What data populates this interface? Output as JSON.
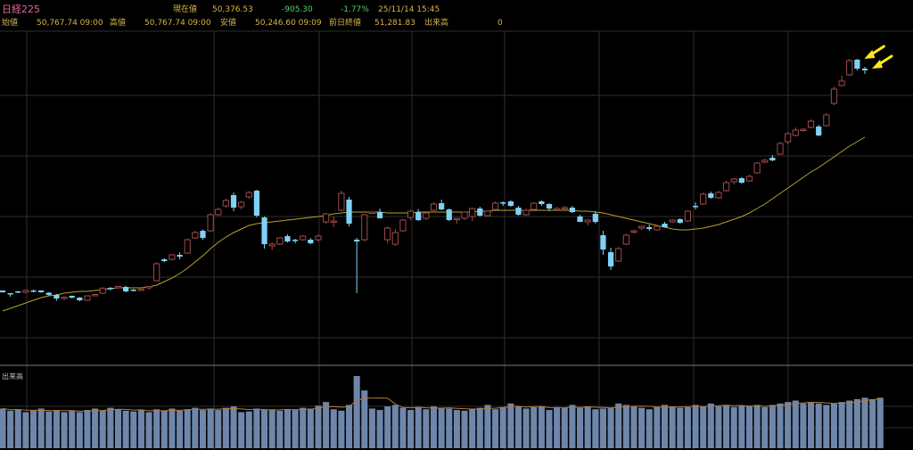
{
  "header": {
    "index_name": "日経225",
    "current_label": "現在値",
    "current_value": "50,376.53",
    "change": "-905.30",
    "change_pct": "-1.77%",
    "datetime": "25/11/14 15:45",
    "open_label": "始値",
    "open_value": "50,767.74 09:00",
    "high_label": "高値",
    "high_value": "50,767.74 09:00",
    "low_label": "安値",
    "low_value": "50,246.60 09:09",
    "prev_close_label": "前日終値",
    "prev_close_value": "51,281.83",
    "volume_label": "出来高",
    "volume_value": "0"
  },
  "volume_panel": {
    "label": "出来高"
  },
  "colors": {
    "up_candle": "#a14a4a",
    "down_candle": "#7fd2f7",
    "moving_average": "#b5a32a",
    "volume_bar": "#6e86aa",
    "grid": "#2e2e2e",
    "arrow": "#ffe81a"
  },
  "chart_data": [
    {
      "type": "candlestick",
      "series": [
        {
          "ohlc": [
            [
              0.53,
              0.53,
              0.505,
              0.51
            ],
            [
              0.5,
              0.495,
              0.46,
              0.485
            ],
            [
              0.52,
              0.525,
              0.5,
              0.515
            ],
            [
              0.51,
              0.54,
              0.5,
              0.53
            ],
            [
              0.53,
              0.54,
              0.51,
              0.52
            ],
            [
              0.53,
              0.532,
              0.505,
              0.51
            ],
            [
              0.505,
              0.512,
              0.47,
              0.48
            ],
            [
              0.48,
              0.492,
              0.415,
              0.44
            ],
            [
              0.45,
              0.463,
              0.425,
              0.455
            ],
            [
              0.47,
              0.475,
              0.44,
              0.45
            ],
            [
              0.45,
              0.456,
              0.41,
              0.42
            ],
            [
              0.42,
              0.475,
              0.412,
              0.47
            ],
            [
              0.48,
              0.492,
              0.47,
              0.485
            ],
            [
              0.5,
              0.566,
              0.49,
              0.556
            ],
            [
              0.56,
              0.568,
              0.53,
              0.55
            ],
            [
              0.56,
              0.58,
              0.55,
              0.575
            ],
            [
              0.57,
              0.582,
              0.51,
              0.52
            ],
            [
              0.54,
              0.548,
              0.52,
              0.53
            ],
            [
              0.54,
              0.55,
              0.53,
              0.545
            ],
            [
              0.57,
              0.58,
              0.54,
              0.575
            ],
            [
              0.64,
              0.85,
              0.632,
              0.83
            ],
            [
              0.88,
              0.892,
              0.845,
              0.86
            ],
            [
              0.88,
              0.94,
              0.865,
              0.93
            ],
            [
              0.93,
              0.956,
              0.88,
              0.91
            ],
            [
              0.95,
              1.11,
              0.94,
              1.1
            ],
            [
              1.12,
              1.2,
              1.11,
              1.18
            ],
            [
              1.2,
              1.215,
              1.1,
              1.12
            ],
            [
              1.2,
              1.4,
              1.19,
              1.38
            ],
            [
              1.38,
              1.46,
              1.37,
              1.44
            ],
            [
              1.48,
              1.56,
              1.46,
              1.54
            ],
            [
              1.6,
              1.63,
              1.42,
              1.46
            ],
            [
              1.47,
              1.535,
              1.44,
              1.52
            ],
            [
              1.58,
              1.645,
              1.56,
              1.63
            ],
            [
              1.65,
              1.66,
              1.35,
              1.37
            ],
            [
              1.35,
              1.365,
              1.0,
              1.05
            ],
            [
              1.03,
              1.07,
              0.985,
              1.05
            ],
            [
              1.05,
              1.13,
              1.04,
              1.12
            ],
            [
              1.14,
              1.16,
              1.07,
              1.08
            ],
            [
              1.1,
              1.11,
              1.06,
              1.09
            ],
            [
              1.1,
              1.15,
              1.09,
              1.14
            ],
            [
              1.1,
              1.12,
              1.05,
              1.06
            ],
            [
              1.1,
              1.16,
              1.08,
              1.14
            ],
            [
              1.3,
              1.4,
              1.28,
              1.39
            ],
            [
              1.3,
              1.36,
              1.24,
              1.31
            ],
            [
              1.43,
              1.65,
              1.42,
              1.62
            ],
            [
              1.55,
              1.58,
              1.25,
              1.28
            ],
            [
              1.1,
              1.12,
              0.5,
              1.08
            ],
            [
              1.1,
              1.39,
              1.08,
              1.38
            ],
            [
              1.4,
              1.42,
              1.39,
              1.41
            ],
            [
              1.41,
              1.45,
              1.34,
              1.34
            ],
            [
              1.1,
              1.25,
              1.06,
              1.23
            ],
            [
              1.05,
              1.22,
              1.03,
              1.18
            ],
            [
              1.2,
              1.335,
              1.19,
              1.32
            ],
            [
              1.35,
              1.435,
              1.32,
              1.42
            ],
            [
              1.41,
              1.44,
              1.31,
              1.32
            ],
            [
              1.34,
              1.41,
              1.32,
              1.4
            ],
            [
              1.43,
              1.52,
              1.42,
              1.5
            ],
            [
              1.51,
              1.55,
              1.43,
              1.44
            ],
            [
              1.44,
              1.45,
              1.31,
              1.32
            ],
            [
              1.33,
              1.345,
              1.28,
              1.34
            ],
            [
              1.34,
              1.42,
              1.32,
              1.41
            ],
            [
              1.36,
              1.46,
              1.31,
              1.45
            ],
            [
              1.45,
              1.47,
              1.36,
              1.37
            ],
            [
              1.37,
              1.43,
              1.36,
              1.42
            ],
            [
              1.44,
              1.53,
              1.43,
              1.51
            ],
            [
              1.52,
              1.53,
              1.48,
              1.51
            ],
            [
              1.53,
              1.545,
              1.47,
              1.48
            ],
            [
              1.46,
              1.48,
              1.37,
              1.38
            ],
            [
              1.38,
              1.45,
              1.37,
              1.43
            ],
            [
              1.44,
              1.52,
              1.42,
              1.51
            ],
            [
              1.53,
              1.54,
              1.48,
              1.5
            ],
            [
              1.5,
              1.51,
              1.42,
              1.45
            ],
            [
              1.45,
              1.47,
              1.43,
              1.45
            ],
            [
              1.46,
              1.48,
              1.44,
              1.46
            ],
            [
              1.46,
              1.48,
              1.4,
              1.41
            ],
            [
              1.36,
              1.38,
              1.3,
              1.3
            ],
            [
              1.3,
              1.33,
              1.26,
              1.32
            ],
            [
              1.39,
              1.42,
              1.28,
              1.3
            ],
            [
              1.15,
              1.2,
              0.93,
              0.99
            ],
            [
              0.96,
              1.01,
              0.76,
              0.8
            ],
            [
              0.86,
              1.02,
              0.85,
              1.0
            ],
            [
              1.05,
              1.17,
              1.04,
              1.15
            ],
            [
              1.19,
              1.21,
              1.17,
              1.2
            ],
            [
              1.23,
              1.26,
              1.21,
              1.25
            ],
            [
              1.24,
              1.27,
              1.2,
              1.22
            ],
            [
              1.21,
              1.26,
              1.2,
              1.25
            ],
            [
              1.28,
              1.3,
              1.24,
              1.24
            ],
            [
              1.3,
              1.33,
              1.29,
              1.32
            ],
            [
              1.33,
              1.34,
              1.28,
              1.29
            ],
            [
              1.31,
              1.43,
              1.3,
              1.42
            ],
            [
              1.48,
              1.52,
              1.44,
              1.47
            ],
            [
              1.5,
              1.63,
              1.49,
              1.61
            ],
            [
              1.62,
              1.64,
              1.56,
              1.57
            ],
            [
              1.57,
              1.65,
              1.56,
              1.63
            ],
            [
              1.65,
              1.76,
              1.64,
              1.74
            ],
            [
              1.75,
              1.79,
              1.72,
              1.78
            ],
            [
              1.79,
              1.8,
              1.73,
              1.74
            ],
            [
              1.76,
              1.83,
              1.75,
              1.81
            ],
            [
              1.85,
              1.97,
              1.84,
              1.96
            ],
            [
              1.97,
              2.01,
              1.96,
              1.99
            ],
            [
              2.02,
              2.05,
              1.98,
              1.99
            ],
            [
              2.06,
              2.2,
              2.05,
              2.18
            ],
            [
              2.2,
              2.31,
              2.17,
              2.29
            ],
            [
              2.27,
              2.36,
              2.26,
              2.33
            ],
            [
              2.34,
              2.35,
              2.31,
              2.34
            ],
            [
              2.36,
              2.45,
              2.35,
              2.43
            ],
            [
              2.37,
              2.39,
              2.26,
              2.27
            ],
            [
              2.38,
              2.52,
              2.37,
              2.5
            ],
            [
              2.63,
              2.82,
              2.61,
              2.79
            ],
            [
              2.83,
              2.94,
              2.82,
              2.88
            ],
            [
              2.95,
              3.13,
              2.94,
              3.11
            ],
            [
              3.12,
              3.13,
              3.0,
              3.02
            ],
            [
              3.02,
              3.04,
              2.96,
              3.0
            ]
          ]
        }
      ],
      "moving_average": [
        0.3,
        0.33,
        0.36,
        0.39,
        0.42,
        0.45,
        0.47,
        0.48,
        0.5,
        0.51,
        0.52,
        0.52,
        0.53,
        0.54,
        0.55,
        0.56,
        0.56,
        0.56,
        0.56,
        0.57,
        0.59,
        0.63,
        0.67,
        0.72,
        0.78,
        0.85,
        0.92,
        1.0,
        1.07,
        1.13,
        1.18,
        1.22,
        1.26,
        1.28,
        1.29,
        1.3,
        1.31,
        1.32,
        1.33,
        1.34,
        1.35,
        1.36,
        1.37,
        1.39,
        1.4,
        1.41,
        1.41,
        1.41,
        1.41,
        1.41,
        1.4,
        1.4,
        1.4,
        1.4,
        1.41,
        1.41,
        1.41,
        1.41,
        1.41,
        1.41,
        1.41,
        1.41,
        1.42,
        1.42,
        1.43,
        1.43,
        1.43,
        1.43,
        1.43,
        1.43,
        1.43,
        1.43,
        1.43,
        1.43,
        1.43,
        1.42,
        1.42,
        1.41,
        1.4,
        1.38,
        1.36,
        1.34,
        1.32,
        1.3,
        1.28,
        1.26,
        1.24,
        1.22,
        1.21,
        1.21,
        1.22,
        1.23,
        1.25,
        1.27,
        1.3,
        1.33,
        1.36,
        1.4,
        1.45,
        1.5,
        1.56,
        1.62,
        1.68,
        1.74,
        1.8,
        1.86,
        1.91,
        1.97,
        2.03,
        2.09,
        2.15,
        2.2,
        2.25
      ],
      "annotations": [
        "arrow",
        "arrow"
      ]
    },
    {
      "type": "bar",
      "name": "出来高",
      "values": [
        0.55,
        0.52,
        0.54,
        0.5,
        0.52,
        0.55,
        0.51,
        0.53,
        0.5,
        0.52,
        0.5,
        0.53,
        0.55,
        0.52,
        0.56,
        0.54,
        0.52,
        0.51,
        0.53,
        0.5,
        0.54,
        0.52,
        0.55,
        0.52,
        0.54,
        0.56,
        0.53,
        0.55,
        0.53,
        0.56,
        0.58,
        0.5,
        0.51,
        0.55,
        0.54,
        0.54,
        0.52,
        0.54,
        0.53,
        0.56,
        0.55,
        0.59,
        0.64,
        0.54,
        0.52,
        0.6,
        1.0,
        0.8,
        0.55,
        0.53,
        0.58,
        0.6,
        0.56,
        0.53,
        0.57,
        0.54,
        0.58,
        0.56,
        0.55,
        0.53,
        0.52,
        0.55,
        0.56,
        0.6,
        0.54,
        0.57,
        0.62,
        0.58,
        0.55,
        0.57,
        0.58,
        0.53,
        0.57,
        0.56,
        0.6,
        0.56,
        0.58,
        0.54,
        0.55,
        0.56,
        0.62,
        0.6,
        0.58,
        0.56,
        0.54,
        0.57,
        0.6,
        0.58,
        0.56,
        0.57,
        0.6,
        0.58,
        0.62,
        0.58,
        0.6,
        0.57,
        0.59,
        0.58,
        0.6,
        0.57,
        0.6,
        0.62,
        0.64,
        0.66,
        0.62,
        0.64,
        0.62,
        0.6,
        0.62,
        0.64,
        0.66,
        0.68,
        0.7,
        0.68,
        0.7
      ]
    }
  ]
}
